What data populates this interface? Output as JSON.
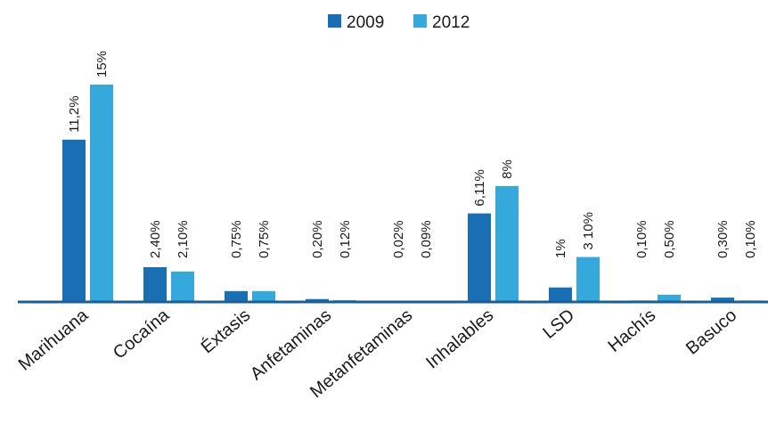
{
  "chart_data": {
    "type": "bar",
    "title": "",
    "xlabel": "",
    "ylabel": "",
    "ylim": [
      0,
      15
    ],
    "grid": false,
    "legend_position": "top-center",
    "categories": [
      "Marihuana",
      "Cocaína",
      "Éxtasis",
      "Anfetaminas",
      "Metanfetaminas",
      "Inhalables",
      "LSD",
      "Hachís",
      "Basuco"
    ],
    "series": [
      {
        "name": "2009",
        "color": "#1a6fb4",
        "values": [
          11.2,
          2.4,
          0.75,
          0.2,
          0.02,
          6.11,
          1.0,
          0.1,
          0.3
        ],
        "labels": [
          "11,2%",
          "2,40%",
          "0,75%",
          "0,20%",
          "0,02%",
          "6,11%",
          "1%",
          "0,10%",
          "0,30%"
        ]
      },
      {
        "name": "2012",
        "color": "#36a9dc",
        "values": [
          15,
          2.1,
          0.75,
          0.12,
          0.09,
          8,
          3.1,
          0.5,
          0.1
        ],
        "labels": [
          "15%",
          "2,10%",
          "0,75%",
          "0,12%",
          "0,09%",
          "8%",
          "3 10%",
          "0,50%",
          "0,10%"
        ]
      }
    ]
  }
}
